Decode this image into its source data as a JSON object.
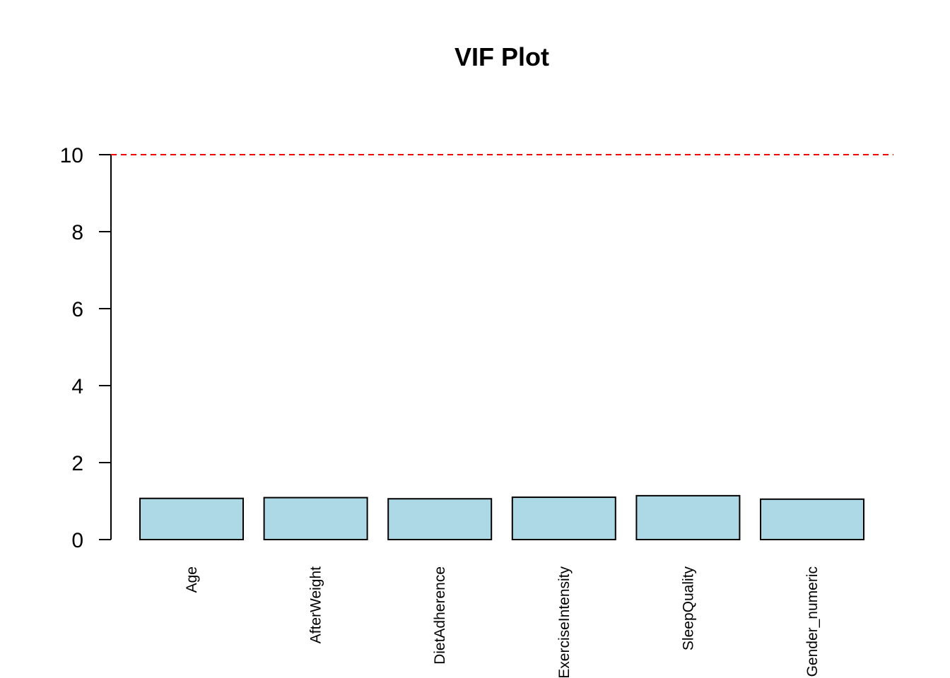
{
  "chart_data": {
    "type": "bar",
    "title": "VIF Plot",
    "xlabel": "",
    "ylabel": "",
    "categories": [
      "Age",
      "AfterWeight",
      "DietAdherence",
      "ExerciseIntensity",
      "SleepQuality",
      "Gender_numeric"
    ],
    "values": [
      1.07,
      1.09,
      1.06,
      1.1,
      1.14,
      1.05
    ],
    "ylim": [
      0,
      10
    ],
    "yticks": [
      "0",
      "2",
      "4",
      "6",
      "8",
      "10"
    ],
    "reference_line": {
      "y": 10,
      "style": "dashed",
      "color": "#ff0000"
    },
    "bar_color": "#add8e6",
    "bar_edge_color": "#000000",
    "grid": false,
    "legend": "none"
  }
}
